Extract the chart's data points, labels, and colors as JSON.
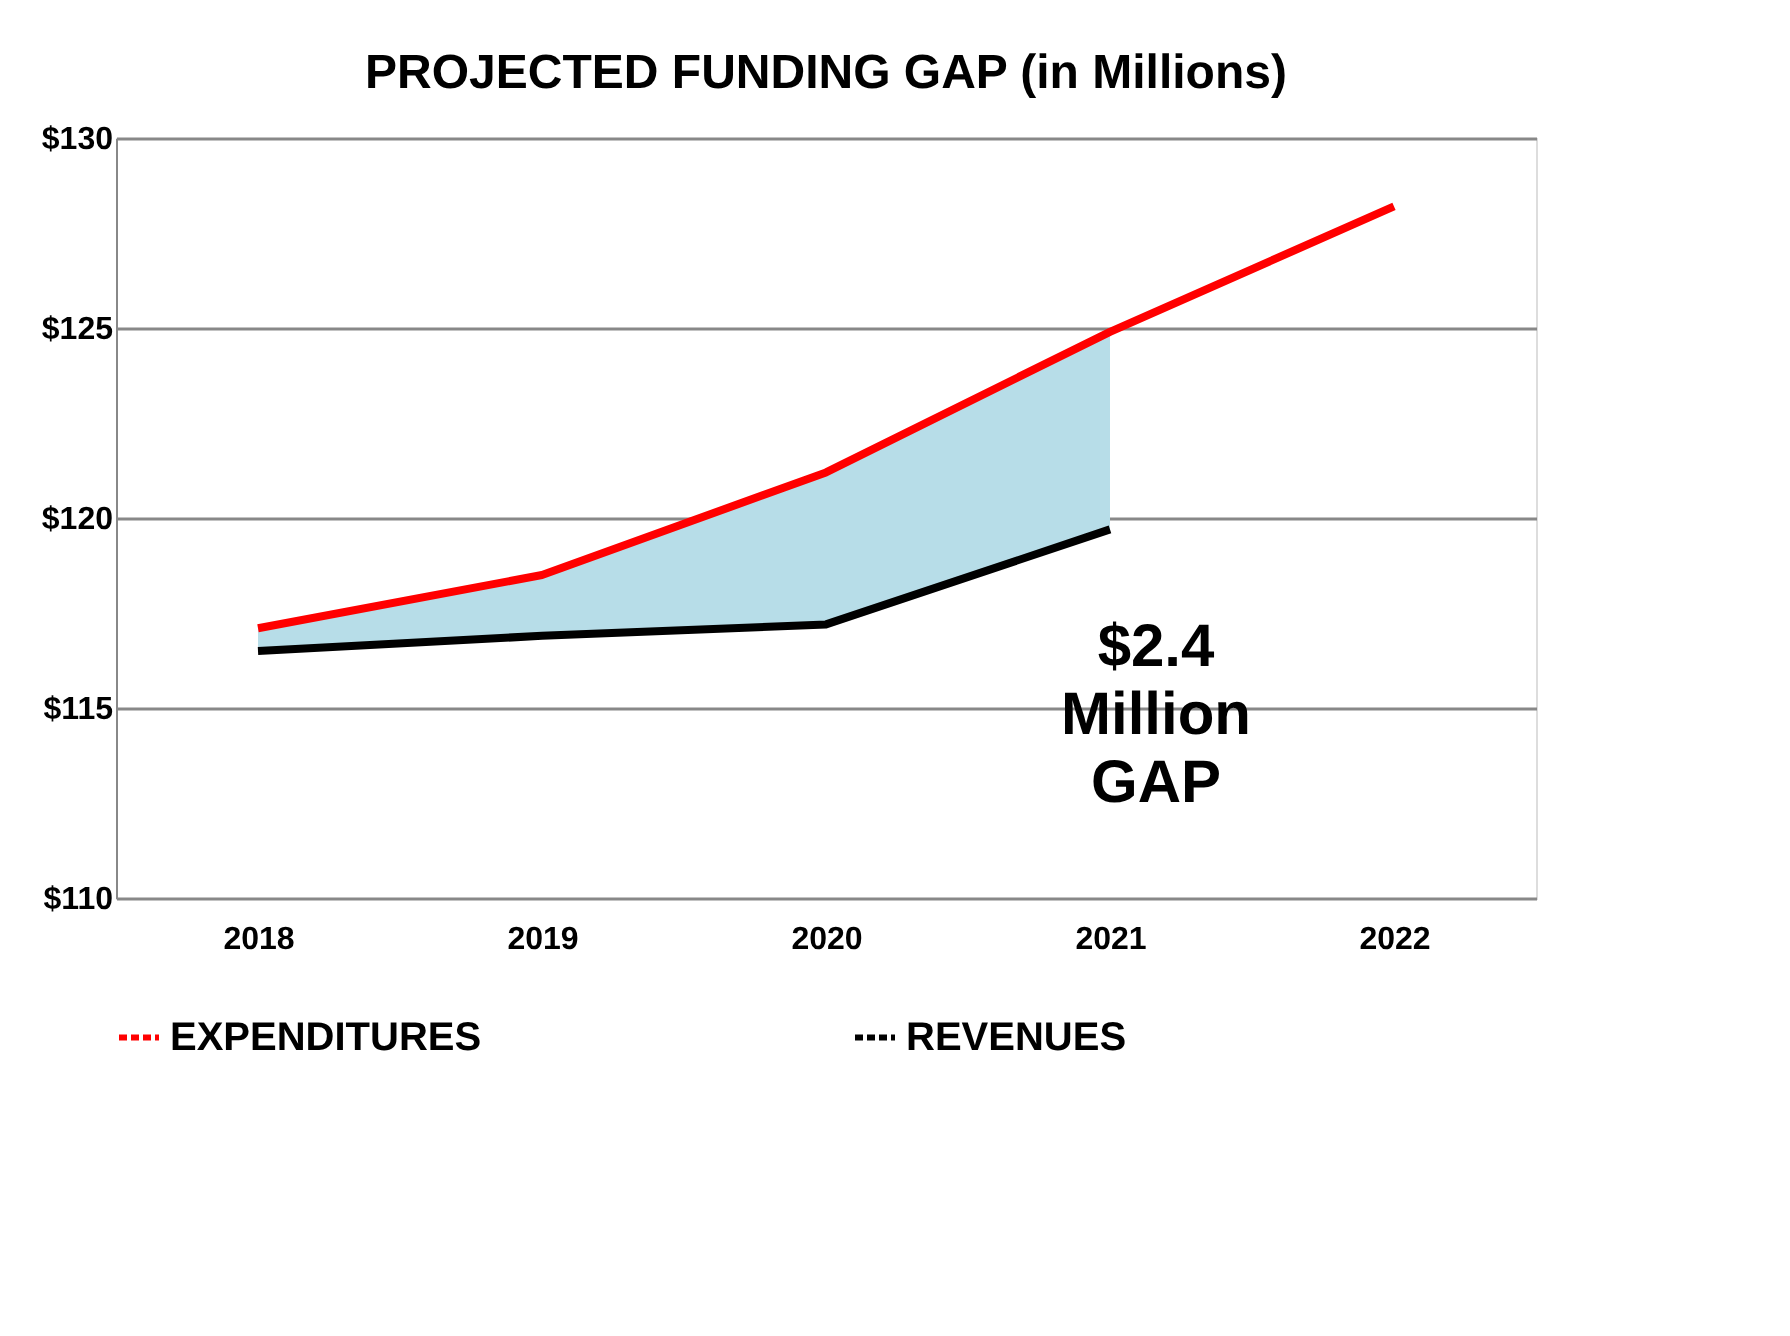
{
  "chart_data": {
    "type": "line",
    "title": "PROJECTED FUNDING GAP (in Millions)",
    "categories": [
      "2018",
      "2019",
      "2020",
      "2021",
      "2022"
    ],
    "series": [
      {
        "name": "EXPENDITURES",
        "color": "#ff0000",
        "values": [
          117.1,
          118.5,
          121.2,
          124.9,
          128.2
        ],
        "lower": [
          116.5,
          116.9,
          117.2,
          119.7,
          null
        ],
        "upper": [
          117.1,
          118.5,
          121.2,
          124.9,
          null
        ]
      },
      {
        "name": "REVENUES",
        "color": "#000000",
        "values": [
          116.5,
          116.9,
          117.2,
          119.7,
          null
        ]
      }
    ],
    "ylim": [
      110,
      130
    ],
    "yticks": [
      {
        "value": 110,
        "label": "$110"
      },
      {
        "value": 115,
        "label": "$115"
      },
      {
        "value": 120,
        "label": "$120"
      },
      {
        "value": 125,
        "label": "$125"
      },
      {
        "value": 130,
        "label": "$130"
      }
    ],
    "grid": "y",
    "legend": "bottom",
    "annotations": [
      "$2.4 Million GAP"
    ]
  }
}
